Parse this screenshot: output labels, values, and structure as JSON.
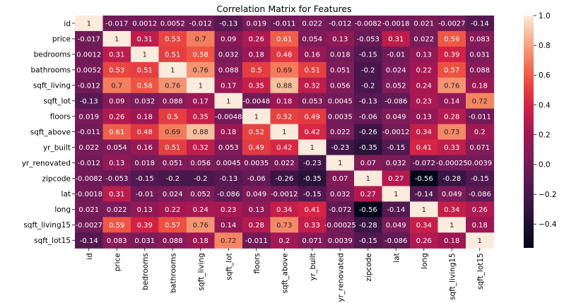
{
  "chart_data": {
    "type": "heatmap",
    "title": "Correlation Matrix for Features",
    "xlabel": "",
    "ylabel": "",
    "labels": [
      "id",
      "price",
      "bedrooms",
      "bathrooms",
      "sqft_living",
      "sqft_lot",
      "floors",
      "sqft_above",
      "yr_built",
      "yr_renovated",
      "zipcode",
      "lat",
      "long",
      "sqft_living15",
      "sqft_lot15"
    ],
    "values": [
      [
        "1",
        "-0.017",
        "0.0012",
        "0.0052",
        "-0.012",
        "-0.13",
        "0.019",
        "-0.011",
        "0.022",
        "-0.012",
        "-0.0082",
        "-0.0018",
        "0.021",
        "-0.0027",
        "-0.14"
      ],
      [
        "-0.017",
        "1",
        "0.31",
        "0.53",
        "0.7",
        "0.09",
        "0.26",
        "0.61",
        "0.054",
        "0.13",
        "-0.053",
        "0.31",
        "0.022",
        "0.59",
        "0.083"
      ],
      [
        "0.0012",
        "0.31",
        "1",
        "0.51",
        "0.58",
        "0.032",
        "0.18",
        "0.48",
        "0.16",
        "0.018",
        "-0.15",
        "-0.01",
        "0.13",
        "0.39",
        "0.031"
      ],
      [
        "0.0052",
        "0.53",
        "0.51",
        "1",
        "0.76",
        "0.088",
        "0.5",
        "0.69",
        "0.51",
        "0.051",
        "-0.2",
        "0.024",
        "0.22",
        "0.57",
        "0.088"
      ],
      [
        "-0.012",
        "0.7",
        "0.58",
        "0.76",
        "1",
        "0.17",
        "0.35",
        "0.88",
        "0.32",
        "0.056",
        "-0.2",
        "0.052",
        "0.24",
        "0.76",
        "0.18"
      ],
      [
        "-0.13",
        "0.09",
        "0.032",
        "0.088",
        "0.17",
        "1",
        "-0.0048",
        "0.18",
        "0.053",
        "0.0045",
        "-0.13",
        "-0.086",
        "0.23",
        "0.14",
        "0.72"
      ],
      [
        "0.019",
        "0.26",
        "0.18",
        "0.5",
        "0.35",
        "-0.0048",
        "1",
        "0.52",
        "0.49",
        "0.0035",
        "-0.06",
        "0.049",
        "0.13",
        "0.28",
        "-0.011"
      ],
      [
        "-0.011",
        "0.61",
        "0.48",
        "0.69",
        "0.88",
        "0.18",
        "0.52",
        "1",
        "0.42",
        "0.022",
        "-0.26",
        "-0.0012",
        "0.34",
        "0.73",
        "0.2"
      ],
      [
        "0.022",
        "0.054",
        "0.16",
        "0.51",
        "0.32",
        "0.053",
        "0.49",
        "0.42",
        "1",
        "-0.23",
        "-0.35",
        "-0.15",
        "0.41",
        "0.33",
        "0.071"
      ],
      [
        "-0.012",
        "0.13",
        "0.018",
        "0.051",
        "0.056",
        "0.0045",
        "0.0035",
        "0.022",
        "-0.23",
        "1",
        "0.07",
        "0.032",
        "-0.072",
        "-0.00025",
        "0.0039"
      ],
      [
        "-0.0082",
        "-0.053",
        "-0.15",
        "-0.2",
        "-0.2",
        "-0.13",
        "-0.06",
        "-0.26",
        "-0.35",
        "0.07",
        "1",
        "0.27",
        "-0.56",
        "-0.28",
        "-0.15"
      ],
      [
        "-0.0018",
        "0.31",
        "-0.01",
        "0.024",
        "0.052",
        "-0.086",
        "0.049",
        "-0.0012",
        "-0.15",
        "0.032",
        "0.27",
        "1",
        "-0.14",
        "0.049",
        "-0.086"
      ],
      [
        "0.021",
        "0.022",
        "0.13",
        "0.22",
        "0.24",
        "0.23",
        "0.13",
        "0.34",
        "0.41",
        "-0.072",
        "-0.56",
        "-0.14",
        "1",
        "0.34",
        "0.26"
      ],
      [
        "-0.0027",
        "0.59",
        "0.39",
        "0.57",
        "0.76",
        "0.14",
        "0.28",
        "0.73",
        "0.33",
        "-0.00025",
        "-0.28",
        "0.049",
        "0.34",
        "1",
        "0.18"
      ],
      [
        "-0.14",
        "0.083",
        "0.031",
        "0.088",
        "0.18",
        "0.72",
        "-0.011",
        "0.2",
        "0.071",
        "0.0039",
        "-0.15",
        "-0.086",
        "0.26",
        "0.18",
        "1"
      ]
    ],
    "colorbar": {
      "ticks": [
        "1.0",
        "0.8",
        "0.6",
        "0.4",
        "0.2",
        "0.0",
        "−0.2",
        "−0.4"
      ],
      "tick_values": [
        1.0,
        0.8,
        0.6,
        0.4,
        0.2,
        0.0,
        -0.2,
        -0.4
      ],
      "range": [
        -0.56,
        1.0
      ]
    },
    "colormap": "rocket",
    "grid": false,
    "legend": "colorbar-right"
  }
}
